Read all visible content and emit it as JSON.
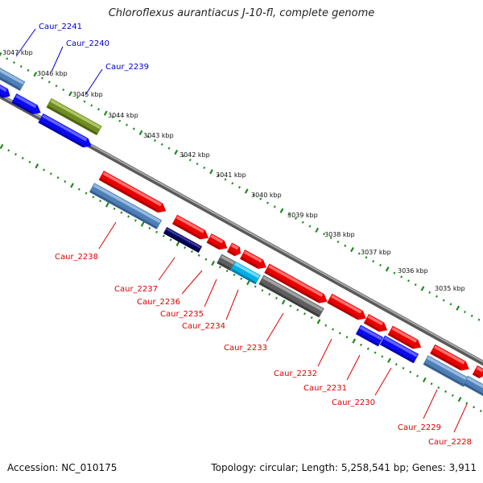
{
  "title": "Chloroflexus aurantiacus J-10-fl, complete genome",
  "accession": "Accession: NC_010175",
  "topology": "Topology: circular; Length: 5,258,541 bp; Genes: 3,911",
  "colors": {
    "blue_label": "#0000cc",
    "red_label": "#dd0000",
    "backbone": "#8c8c8c",
    "ticks": "#1f8a1f"
  },
  "scale_labels": [
    "3047 kbp",
    "3046 kbp",
    "3045 kbp",
    "3044 kbp",
    "3043 kbp",
    "3042 kbp",
    "3041 kbp",
    "3040 kbp",
    "3039 kbp",
    "3038 kbp",
    "3037 kbp",
    "3036 kbp",
    "3035 kbp"
  ],
  "genes": [
    {
      "label": "Caur_2241",
      "strand": "top",
      "color": "steelblue"
    },
    {
      "label": "Caur_2240",
      "strand": "top",
      "color": "blue"
    },
    {
      "label": "Caur_2239",
      "strand": "top",
      "color": "olive"
    },
    {
      "label": "Caur_2238",
      "strand": "bottom",
      "color": "red"
    },
    {
      "label": "Caur_2237",
      "strand": "bottom",
      "color": "navy"
    },
    {
      "label": "Caur_2236",
      "strand": "bottom",
      "color": "red"
    },
    {
      "label": "Caur_2235",
      "strand": "bottom",
      "color": "gray"
    },
    {
      "label": "Caur_2234",
      "strand": "bottom",
      "color": "cyan"
    },
    {
      "label": "Caur_2233",
      "strand": "bottom",
      "color": "gray"
    },
    {
      "label": "Caur_2232",
      "strand": "bottom",
      "color": "red"
    },
    {
      "label": "Caur_2231",
      "strand": "bottom",
      "color": "blue"
    },
    {
      "label": "Caur_2230",
      "strand": "bottom",
      "color": "red"
    },
    {
      "label": "Caur_2229",
      "strand": "bottom",
      "color": "steelblue"
    },
    {
      "label": "Caur_2228",
      "strand": "bottom",
      "color": "red"
    }
  ]
}
